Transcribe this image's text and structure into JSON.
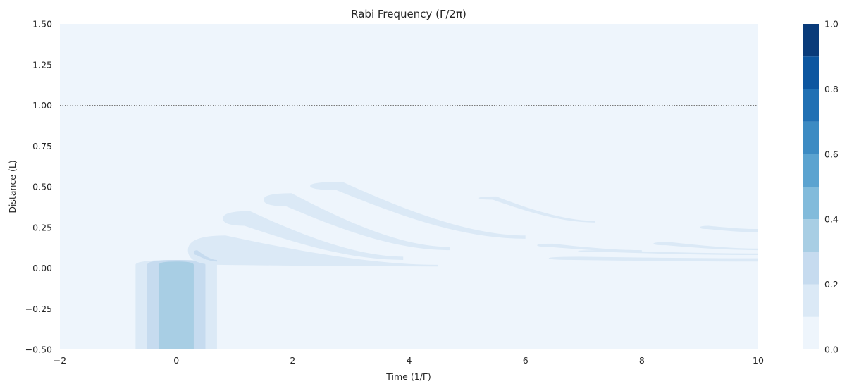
{
  "chart_data": {
    "type": "heatmap",
    "title": "Rabi Frequency (Γ/2π)",
    "xlabel": "Time (1/Γ)",
    "ylabel": "Distance (L)",
    "xlim": [
      -2,
      10
    ],
    "ylim": [
      -0.5,
      1.5
    ],
    "x_ticks": [
      -2,
      0,
      2,
      4,
      6,
      8,
      10
    ],
    "x_tick_labels": [
      "−2",
      "0",
      "2",
      "4",
      "6",
      "8",
      "10"
    ],
    "y_ticks": [
      -0.5,
      -0.25,
      0.0,
      0.25,
      0.5,
      0.75,
      1.0,
      1.25,
      1.5
    ],
    "y_tick_labels": [
      "−0.50",
      "−0.25",
      "0.00",
      "0.25",
      "0.50",
      "0.75",
      "1.00",
      "1.25",
      "1.50"
    ],
    "reference_lines_y": [
      0.0,
      1.0
    ],
    "grid": false,
    "colorbar": {
      "range": [
        0,
        1
      ],
      "levels": [
        0,
        0.1,
        0.2,
        0.3,
        0.4,
        0.5,
        0.6,
        0.7,
        0.8,
        0.9,
        1.0
      ],
      "tick_values": [
        0,
        0.2,
        0.4,
        0.6,
        0.8,
        1.0
      ],
      "tick_labels": [
        "0.0",
        "0.2",
        "0.4",
        "0.6",
        "0.8",
        "1.0"
      ],
      "colormap": "Blues",
      "colors": [
        "#eef5fc",
        "#dbe9f6",
        "#c6dbef",
        "#a8cee4",
        "#82bbdb",
        "#5ba3d0",
        "#3c8bc3",
        "#2070b4",
        "#0c56a0",
        "#093b7a"
      ]
    },
    "regions": [
      {
        "name": "input-pulse",
        "kind": "rect",
        "level": 0.1,
        "x": [
          -0.7,
          0.7
        ],
        "y": [
          -0.5,
          0.02
        ],
        "cap": 0.03
      },
      {
        "name": "input-pulse",
        "kind": "rect",
        "level": 0.2,
        "x": [
          -0.5,
          0.5
        ],
        "y": [
          -0.5,
          0.02
        ],
        "cap": 0.03
      },
      {
        "name": "input-pulse",
        "kind": "rect",
        "level": 0.3,
        "x": [
          -0.3,
          0.3
        ],
        "y": [
          -0.5,
          0.02
        ],
        "cap": 0.02
      },
      {
        "name": "ringing-band-1",
        "kind": "band",
        "level": 0.1,
        "x": [
          0.2,
          4.5
        ],
        "top": [
          0.2,
          0.02
        ],
        "bottom": [
          0.02,
          0.01
        ]
      },
      {
        "name": "ringing-band-2",
        "kind": "band",
        "level": 0.1,
        "x": [
          0.8,
          3.9
        ],
        "top": [
          0.35,
          0.07
        ],
        "bottom": [
          0.26,
          0.05
        ]
      },
      {
        "name": "ringing-band-3",
        "kind": "band",
        "level": 0.1,
        "x": [
          1.5,
          4.7
        ],
        "top": [
          0.46,
          0.13
        ],
        "bottom": [
          0.38,
          0.11
        ]
      },
      {
        "name": "ringing-band-4",
        "kind": "band",
        "level": 0.1,
        "x": [
          2.3,
          6.0
        ],
        "top": [
          0.53,
          0.2
        ],
        "bottom": [
          0.48,
          0.18
        ]
      },
      {
        "name": "ringing-band-5",
        "kind": "band",
        "level": 0.1,
        "x": [
          5.2,
          7.2
        ],
        "top": [
          0.44,
          0.29
        ],
        "bottom": [
          0.42,
          0.28
        ]
      },
      {
        "name": "core-band",
        "kind": "band",
        "level": 0.2,
        "x": [
          0.3,
          0.7
        ],
        "top": [
          0.11,
          0.05
        ],
        "bottom": [
          0.08,
          0.04
        ]
      },
      {
        "name": "tail-band-a",
        "kind": "band",
        "level": 0.1,
        "x": [
          6.4,
          10.0
        ],
        "top": [
          0.07,
          0.06
        ],
        "bottom": [
          0.05,
          0.04
        ]
      },
      {
        "name": "tail-band-b",
        "kind": "band",
        "level": 0.1,
        "x": [
          6.2,
          8.0
        ],
        "top": [
          0.15,
          0.11
        ],
        "bottom": [
          0.13,
          0.1
        ]
      },
      {
        "name": "tail-band-c",
        "kind": "band",
        "level": 0.1,
        "x": [
          8.2,
          10.0
        ],
        "top": [
          0.16,
          0.12
        ],
        "bottom": [
          0.14,
          0.11
        ]
      },
      {
        "name": "tail-band-d",
        "kind": "band",
        "level": 0.1,
        "x": [
          9.0,
          10.0
        ],
        "top": [
          0.26,
          0.24
        ],
        "bottom": [
          0.24,
          0.22
        ]
      },
      {
        "name": "tail-band-e",
        "kind": "band",
        "level": 0.1,
        "x": [
          6.9,
          10.0
        ],
        "top": [
          0.11,
          0.09
        ],
        "bottom": [
          0.1,
          0.08
        ]
      }
    ]
  }
}
